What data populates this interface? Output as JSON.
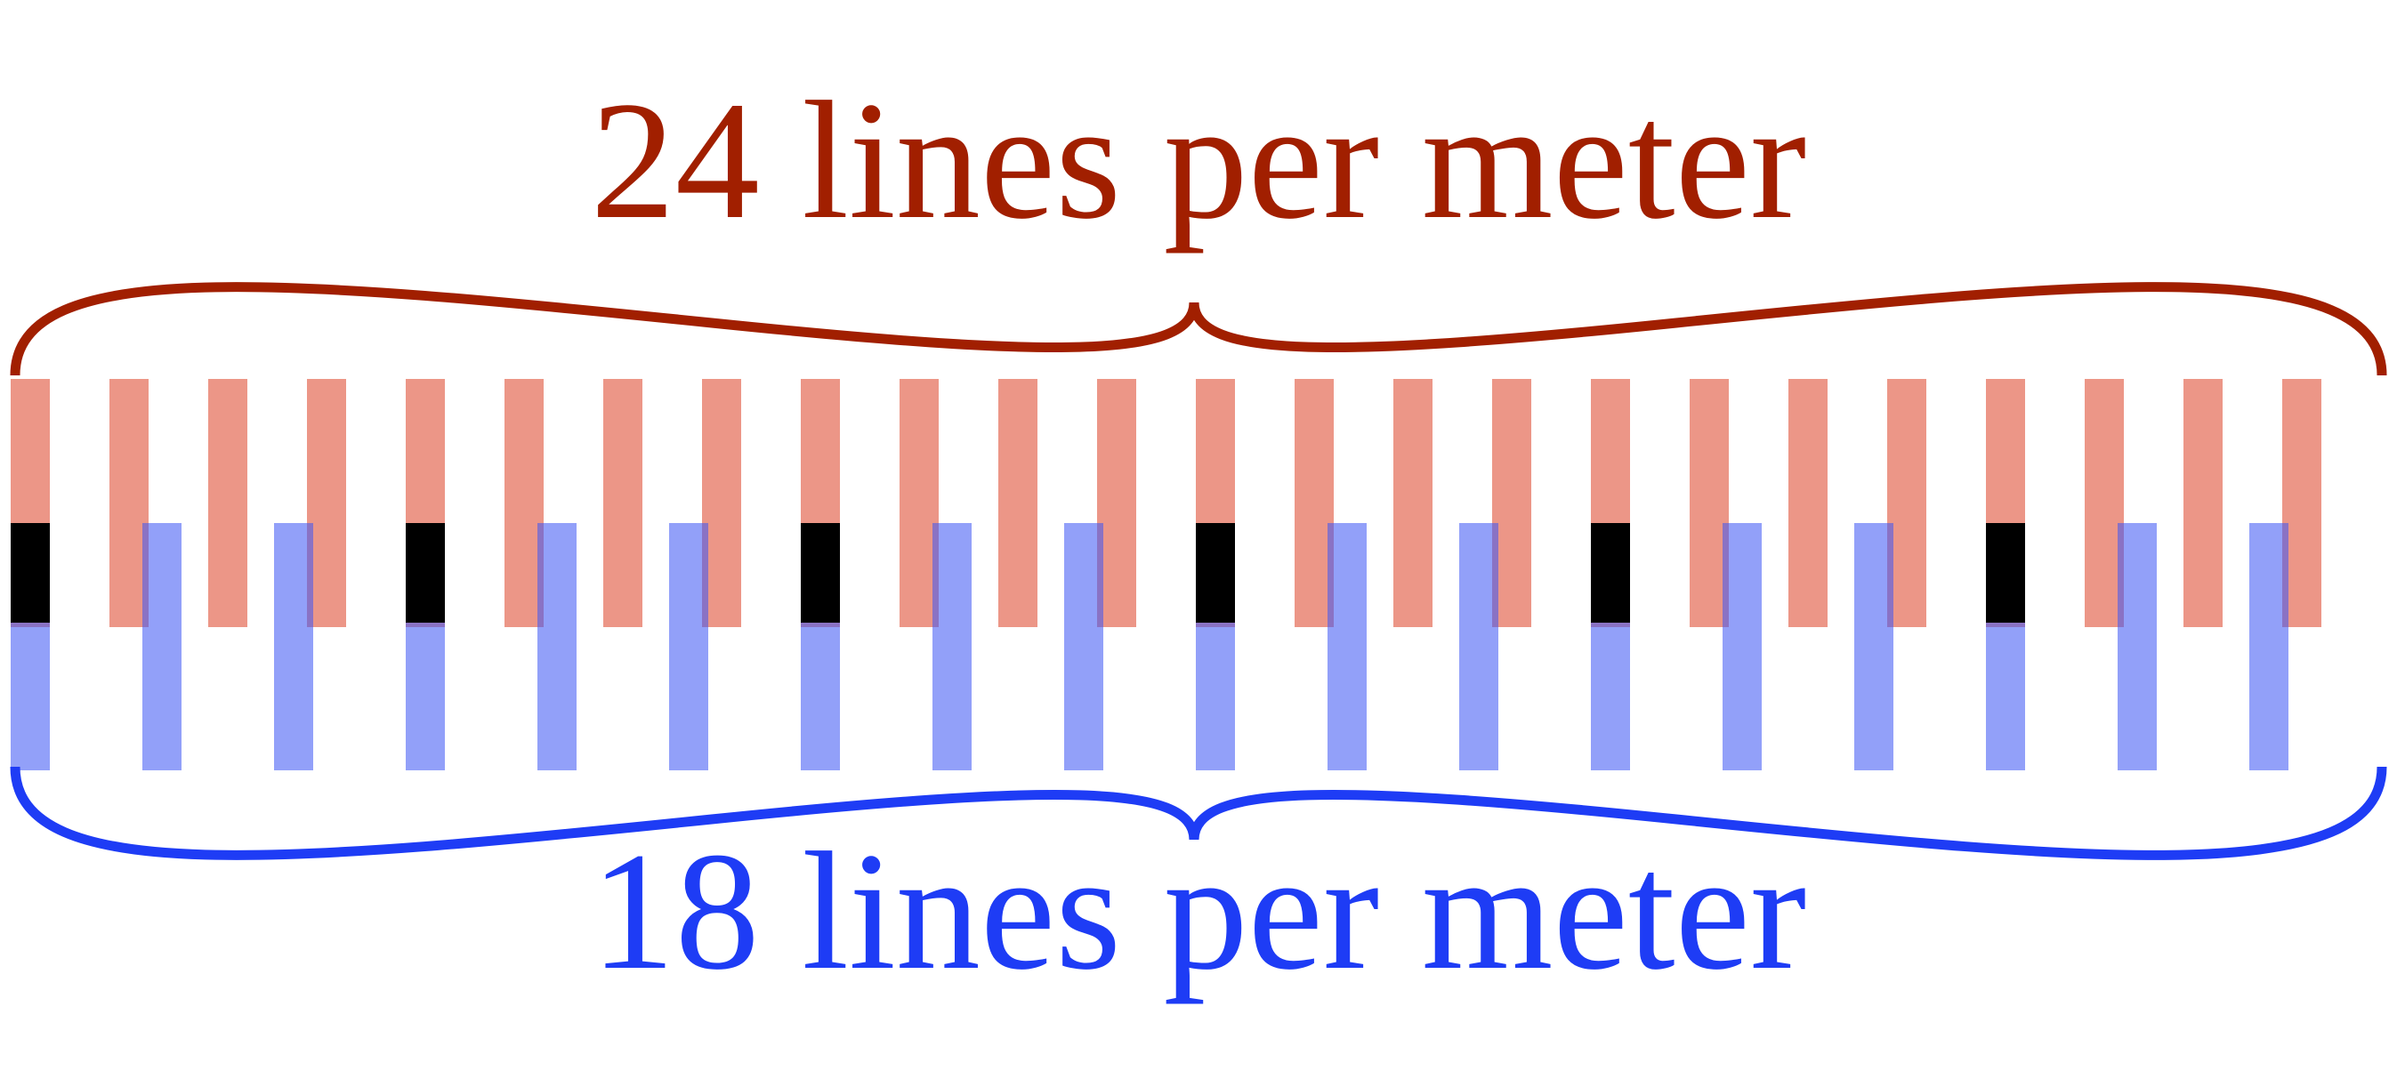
{
  "top_label": {
    "text": "24 lines per meter",
    "color": "#a11f00"
  },
  "bottom_label": {
    "text": "18 lines per meter",
    "color": "#1e3cf5"
  },
  "gratings": {
    "red": {
      "lines_per_meter": 24,
      "fill": "#e0563e",
      "opacity": 0.62
    },
    "blue": {
      "lines_per_meter": 18,
      "fill": "#3c55f5",
      "opacity": 0.56
    },
    "coincidences": 6,
    "coincidence_fill": "#000000"
  },
  "braces": {
    "top_color": "#a11f00",
    "bottom_color": "#1e3cf5"
  }
}
